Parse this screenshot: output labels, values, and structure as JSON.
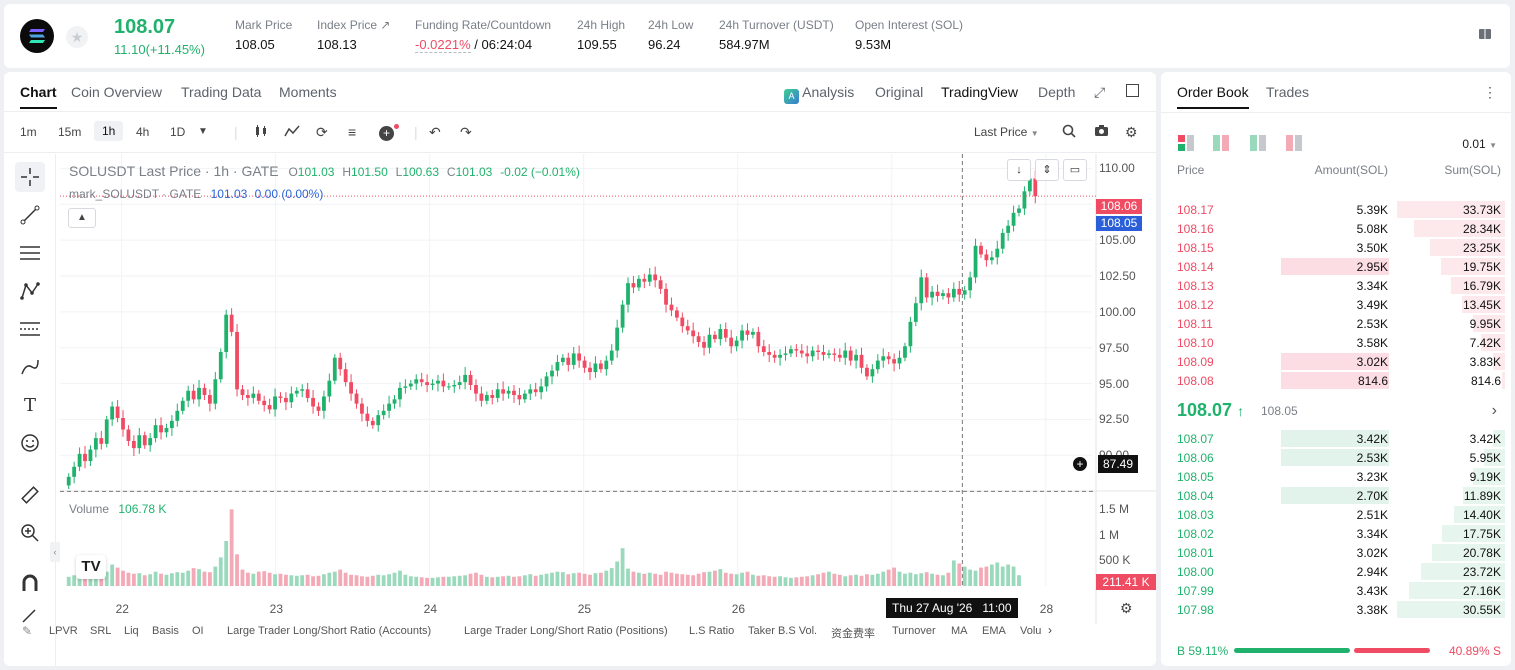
{
  "ticker": {
    "price": "108.07",
    "change": "11.10(+11.45%)",
    "mark_label": "Mark Price",
    "mark_value": "108.05",
    "index_label": "Index Price",
    "index_value": "108.13",
    "funding_label": "Funding Rate/Countdown",
    "funding_rate": "-0.0221%",
    "countdown": "/ 06:24:04",
    "high_label": "24h High",
    "high_value": "109.55",
    "low_label": "24h Low",
    "low_value": "96.24",
    "turnover_label": "24h Turnover (USDT)",
    "turnover_value": "584.97M",
    "oi_label": "Open Interest (SOL)",
    "oi_value": "9.53M"
  },
  "chart_tabs": [
    "Chart",
    "Coin Overview",
    "Trading Data",
    "Moments"
  ],
  "view_tabs": {
    "analysis": "Analysis",
    "original": "Original",
    "tradingview": "TradingView",
    "depth": "Depth"
  },
  "timeframes": [
    "1m",
    "15m",
    "1h",
    "4h",
    "1D"
  ],
  "last_price_select": "Last Price",
  "legend": {
    "symbol": "SOLUSDT Last Price · 1h · GATE",
    "o_lbl": "O",
    "o": "101.03",
    "h_lbl": "H",
    "h": "101.50",
    "l_lbl": "L",
    "l": "100.63",
    "c_lbl": "C",
    "c": "101.03",
    "chg": "-0.02 (−0.01%)",
    "mark_line": "mark_SOLUSDT · GATE",
    "mark_val": "101.03",
    "mark_chg": "0.00 (0.00%)",
    "volume_label": "Volume",
    "volume_value": "106.78 K"
  },
  "price_tag_last": "108.06",
  "price_tag_mark": "108.05",
  "crosshair_price": "87.49",
  "crosshair_time": "Thu 27 Aug '26",
  "crosshair_hour": "11:00",
  "volume_last_tag": "211.41 K",
  "indicators": [
    "LPVR",
    "SRL",
    "Liq",
    "Basis",
    "OI",
    "Large Trader Long/Short Ratio (Accounts)",
    "Large Trader Long/Short Ratio (Positions)",
    "L.S Ratio",
    "Taker B.S Vol.",
    "资金费率",
    "Turnover",
    "MA",
    "EMA",
    "Volu"
  ],
  "colors": {
    "up": "#20b26c",
    "down": "#ef4b63",
    "up_vol": "#9ad9bc",
    "down_vol": "#f3a9b6"
  },
  "chart_data": {
    "type": "candlestick",
    "interval": "1h",
    "y_ticks": [
      "110.00",
      "107.50",
      "105.00",
      "102.50",
      "100.00",
      "97.50",
      "95.00",
      "92.50",
      "90.00"
    ],
    "y_range": [
      88,
      111
    ],
    "vol_ticks": [
      "1.5 M",
      "1 M",
      "500 K"
    ],
    "vol_range": [
      0,
      1800000
    ],
    "x_ticks": [
      "22",
      "23",
      "24",
      "25",
      "26",
      "27",
      "28"
    ],
    "x_range_days": [
      21.6,
      28.3
    ],
    "closes": [
      88.5,
      89.2,
      90.1,
      89.6,
      90.4,
      91.2,
      90.8,
      92.5,
      93.4,
      92.6,
      91.8,
      91.0,
      90.5,
      91.4,
      90.7,
      91.2,
      92.1,
      91.6,
      91.9,
      92.4,
      93.1,
      93.8,
      94.5,
      93.9,
      94.7,
      94.2,
      93.6,
      95.3,
      97.2,
      99.8,
      98.6,
      94.6,
      94.2,
      94.0,
      94.3,
      93.8,
      93.5,
      93.2,
      94.1,
      94.0,
      93.7,
      94.3,
      94.5,
      94.6,
      94.0,
      93.4,
      93.1,
      94.1,
      95.2,
      96.8,
      96.0,
      95.1,
      94.3,
      93.6,
      92.9,
      92.4,
      92.1,
      92.8,
      93.1,
      93.6,
      93.9,
      94.7,
      94.8,
      95.0,
      95.3,
      95.1,
      94.9,
      95.0,
      95.2,
      94.8,
      94.8,
      94.9,
      95.1,
      95.6,
      94.9,
      94.3,
      93.8,
      94.2,
      94.0,
      94.6,
      94.3,
      94.5,
      94.2,
      93.9,
      94.3,
      94.6,
      94.4,
      94.8,
      95.5,
      95.9,
      96.5,
      96.8,
      96.3,
      97.1,
      96.6,
      96.1,
      95.8,
      96.4,
      96.0,
      96.6,
      97.3,
      98.9,
      100.5,
      102.0,
      101.7,
      102.3,
      102.1,
      102.6,
      102.2,
      101.6,
      100.5,
      100.1,
      99.6,
      99.0,
      98.7,
      98.3,
      97.9,
      97.5,
      98.4,
      98.1,
      98.8,
      98.2,
      97.6,
      98.0,
      98.7,
      98.4,
      98.6,
      97.6,
      97.2,
      97.0,
      96.8,
      97.0,
      97.1,
      97.4,
      97.3,
      97.1,
      96.9,
      97.3,
      97.2,
      97.0,
      97.1,
      97.0,
      96.8,
      97.3,
      96.6,
      97.0,
      96.1,
      95.5,
      96.0,
      96.6,
      96.9,
      96.7,
      96.4,
      96.8,
      97.6,
      99.3,
      100.6,
      102.4,
      101.0,
      101.4,
      101.1,
      101.3,
      101.0,
      101.6,
      101.2,
      101.5,
      102.4,
      104.6,
      104.0,
      103.6,
      103.8,
      104.4,
      105.5,
      106.0,
      106.9,
      107.2,
      108.4,
      109.3,
      108.06
    ],
    "volumes": [
      180000,
      210000,
      260000,
      300000,
      240000,
      190000,
      230000,
      280000,
      420000,
      360000,
      300000,
      260000,
      240000,
      250000,
      210000,
      230000,
      280000,
      240000,
      220000,
      250000,
      270000,
      260000,
      300000,
      350000,
      330000,
      280000,
      270000,
      380000,
      560000,
      880000,
      1500000,
      620000,
      320000,
      260000,
      240000,
      280000,
      290000,
      260000,
      230000,
      240000,
      220000,
      210000,
      200000,
      210000,
      220000,
      190000,
      200000,
      230000,
      260000,
      280000,
      320000,
      260000,
      220000,
      210000,
      190000,
      180000,
      200000,
      220000,
      210000,
      230000,
      260000,
      300000,
      220000,
      190000,
      180000,
      170000,
      160000,
      160000,
      170000,
      180000,
      180000,
      190000,
      200000,
      210000,
      240000,
      260000,
      220000,
      180000,
      170000,
      180000,
      190000,
      200000,
      180000,
      190000,
      210000,
      230000,
      200000,
      220000,
      240000,
      260000,
      280000,
      270000,
      230000,
      250000,
      260000,
      240000,
      220000,
      250000,
      260000,
      300000,
      350000,
      480000,
      740000,
      340000,
      280000,
      260000,
      240000,
      260000,
      240000,
      220000,
      280000,
      260000,
      240000,
      230000,
      220000,
      210000,
      240000,
      270000,
      280000,
      300000,
      330000,
      260000,
      240000,
      230000,
      260000,
      280000,
      220000,
      200000,
      210000,
      190000,
      180000,
      190000,
      170000,
      160000,
      170000,
      180000,
      190000,
      210000,
      230000,
      260000,
      280000,
      240000,
      220000,
      190000,
      210000,
      220000,
      200000,
      230000,
      220000,
      240000,
      280000,
      320000,
      360000,
      280000,
      240000,
      260000,
      230000,
      250000,
      270000,
      240000,
      220000,
      210000,
      260000,
      500000,
      440000,
      380000,
      320000,
      300000,
      360000,
      380000,
      420000,
      460000,
      380000,
      420000,
      380000,
      211410
    ]
  },
  "orderbook": {
    "tabs": [
      "Order Book",
      "Trades"
    ],
    "precision": "0.01",
    "headers": {
      "price": "Price",
      "amount": "Amount(SOL)",
      "sum": "Sum(SOL)"
    },
    "asks": [
      {
        "p": "108.17",
        "a": "5.39K",
        "s": "33.73K",
        "fill": 1.0,
        "hl": false
      },
      {
        "p": "108.16",
        "a": "5.08K",
        "s": "28.34K",
        "fill": 0.84,
        "hl": false
      },
      {
        "p": "108.15",
        "a": "3.50K",
        "s": "23.25K",
        "fill": 0.69,
        "hl": false
      },
      {
        "p": "108.14",
        "a": "2.95K",
        "s": "19.75K",
        "fill": 0.59,
        "hl": true
      },
      {
        "p": "108.13",
        "a": "3.34K",
        "s": "16.79K",
        "fill": 0.5,
        "hl": false
      },
      {
        "p": "108.12",
        "a": "3.49K",
        "s": "13.45K",
        "fill": 0.4,
        "hl": false
      },
      {
        "p": "108.11",
        "a": "2.53K",
        "s": "9.95K",
        "fill": 0.3,
        "hl": false
      },
      {
        "p": "108.10",
        "a": "3.58K",
        "s": "7.42K",
        "fill": 0.22,
        "hl": false
      },
      {
        "p": "108.09",
        "a": "3.02K",
        "s": "3.83K",
        "fill": 0.11,
        "hl": true
      },
      {
        "p": "108.08",
        "a": "814.6",
        "s": "814.6",
        "fill": 0.03,
        "hl": true
      }
    ],
    "mid_price": "108.07",
    "mid_arrow": "↑",
    "mid_mark": "108.05",
    "bids": [
      {
        "p": "108.07",
        "a": "3.42K",
        "s": "3.42K",
        "fill": 0.11,
        "hl": true
      },
      {
        "p": "108.06",
        "a": "2.53K",
        "s": "5.95K",
        "fill": 0.19,
        "hl": true
      },
      {
        "p": "108.05",
        "a": "3.23K",
        "s": "9.19K",
        "fill": 0.3,
        "hl": false
      },
      {
        "p": "108.04",
        "a": "2.70K",
        "s": "11.89K",
        "fill": 0.39,
        "hl": true
      },
      {
        "p": "108.03",
        "a": "2.51K",
        "s": "14.40K",
        "fill": 0.47,
        "hl": false
      },
      {
        "p": "108.02",
        "a": "3.34K",
        "s": "17.75K",
        "fill": 0.58,
        "hl": false
      },
      {
        "p": "108.01",
        "a": "3.02K",
        "s": "20.78K",
        "fill": 0.68,
        "hl": false
      },
      {
        "p": "108.00",
        "a": "2.94K",
        "s": "23.72K",
        "fill": 0.78,
        "hl": false
      },
      {
        "p": "107.99",
        "a": "3.43K",
        "s": "27.16K",
        "fill": 0.89,
        "hl": false
      },
      {
        "p": "107.98",
        "a": "3.38K",
        "s": "30.55K",
        "fill": 1.0,
        "hl": false
      }
    ],
    "buy_ratio": "B 59.11%",
    "sell_ratio": "40.89% S",
    "buy_fraction": 0.5911
  }
}
